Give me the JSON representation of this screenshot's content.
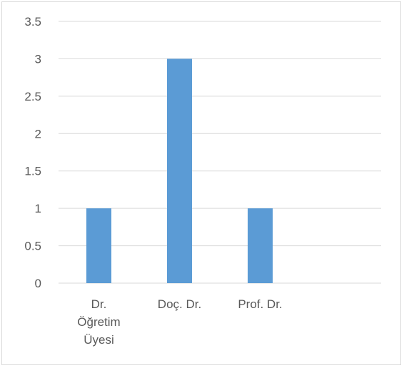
{
  "chart_data": {
    "type": "bar",
    "categories": [
      [
        "Dr.",
        "Öğretim",
        "Üyesi"
      ],
      [
        "Doç. Dr."
      ],
      [
        "Prof. Dr."
      ],
      []
    ],
    "values": [
      1,
      3,
      1,
      null
    ],
    "ylim": [
      0,
      3.5
    ],
    "yticks": [
      "0",
      "0.5",
      "1",
      "1.5",
      "2",
      "2.5",
      "3",
      "3.5"
    ],
    "grid": true,
    "legend": "none",
    "colors": {
      "bar": "#5B9BD5",
      "grid": "#d9d9d9",
      "text": "#595959"
    }
  }
}
